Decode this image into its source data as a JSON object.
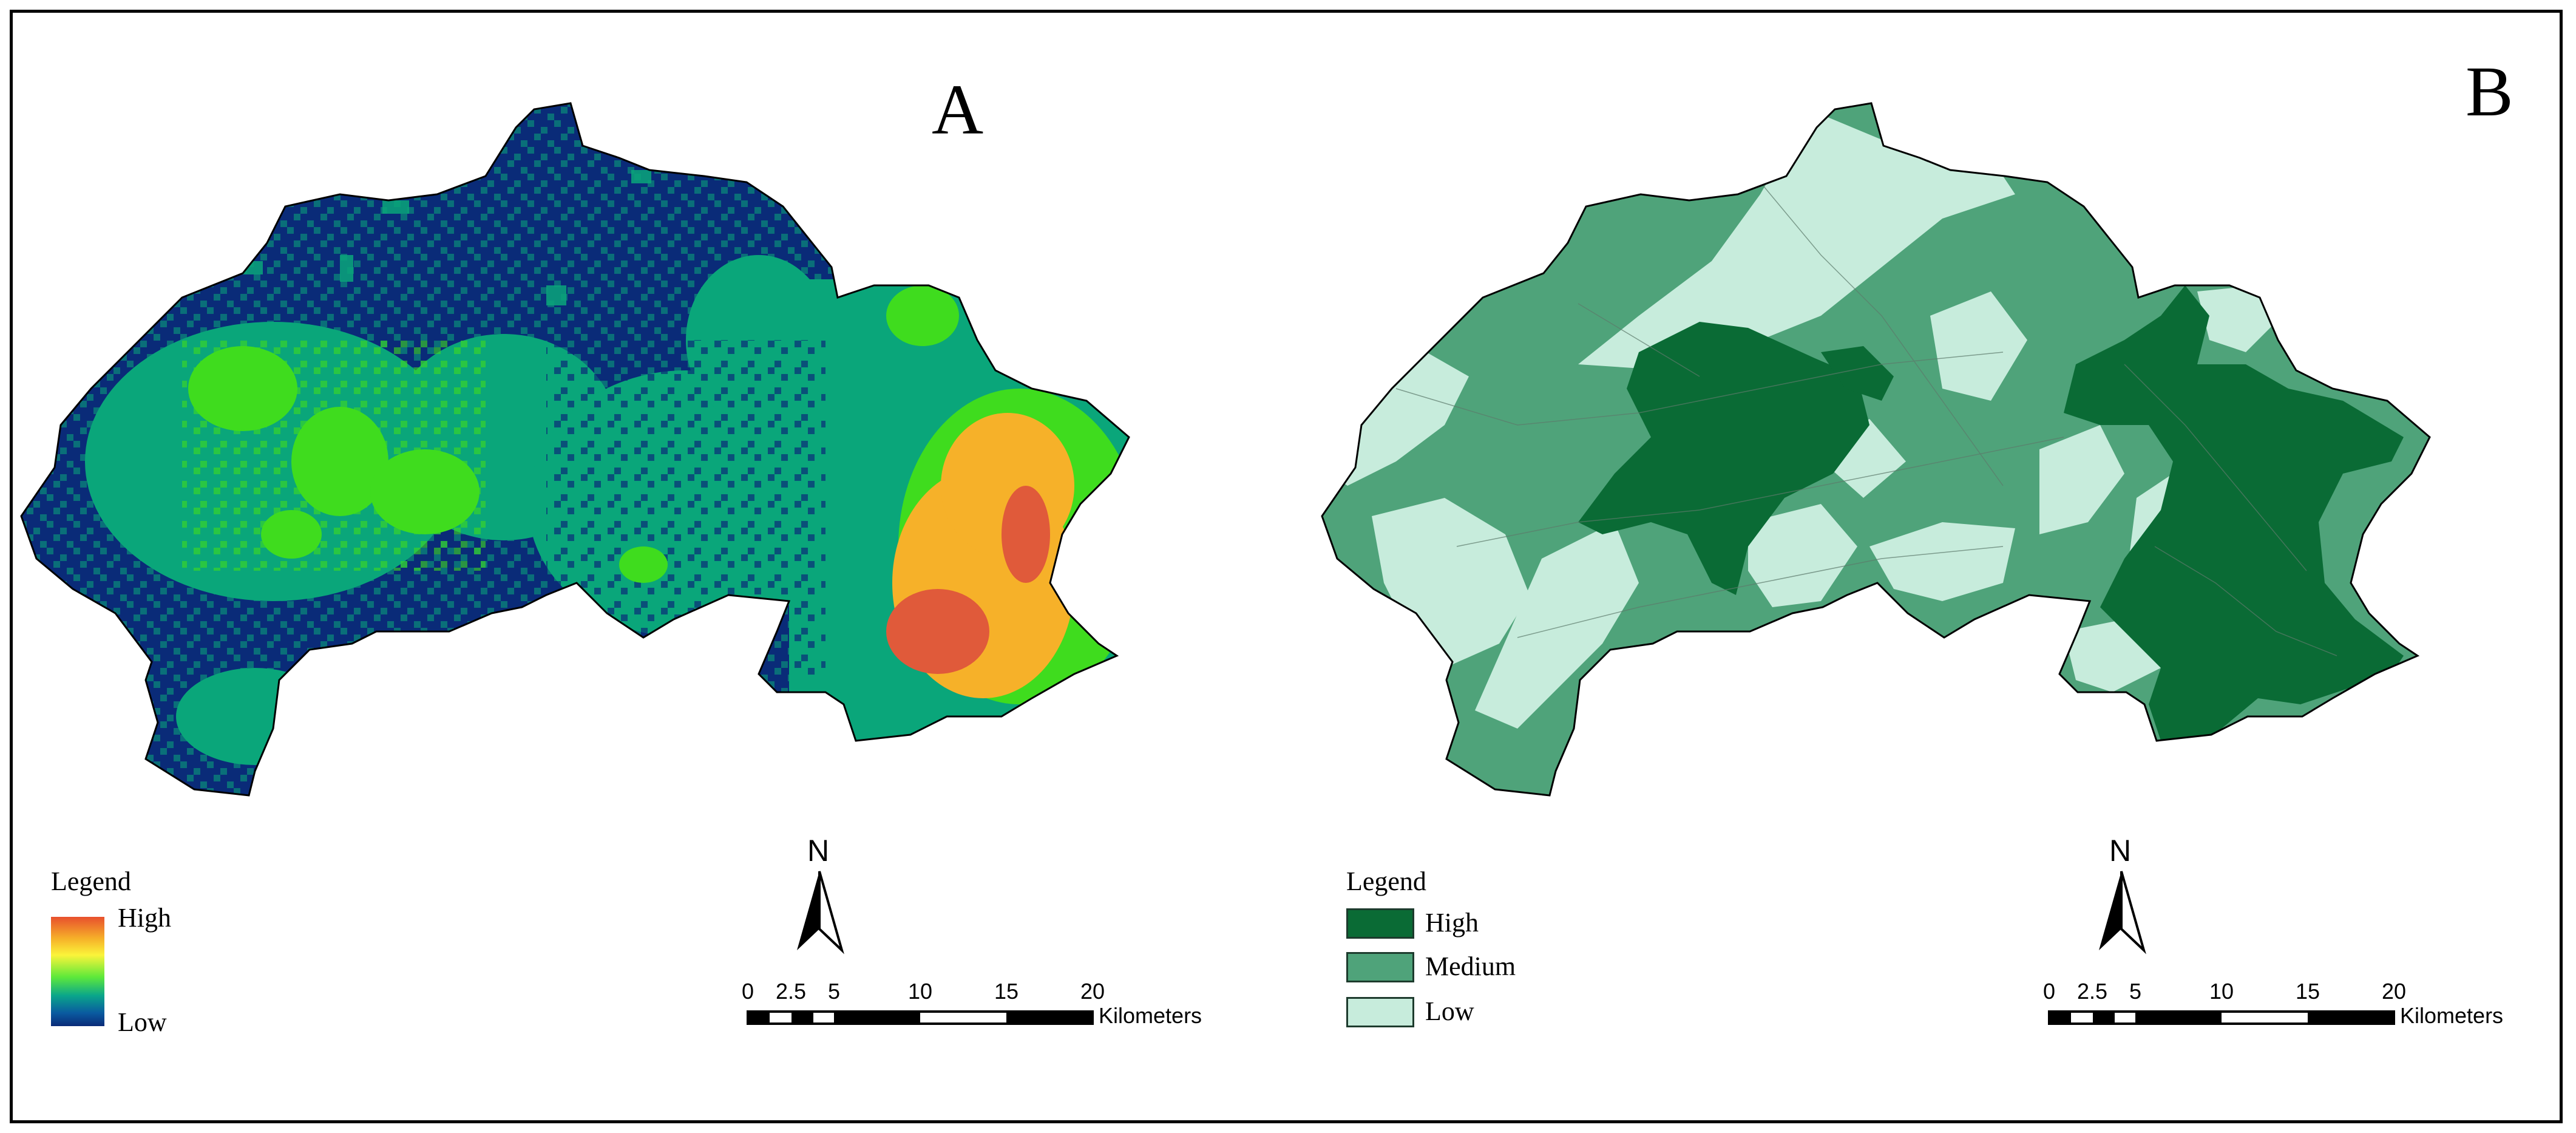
{
  "panels": [
    {
      "letter": "A",
      "legend": {
        "title": "Legend",
        "ramp_high": "High",
        "ramp_low": "Low",
        "ramp_colors": [
          "#e8502d",
          "#f6b129",
          "#fbf43a",
          "#5ee93a",
          "#0aa68a",
          "#0a5aa0",
          "#0a2b78"
        ]
      },
      "north_label": "N",
      "scale": {
        "ticks": [
          "0",
          "2.5",
          "5",
          "10",
          "15",
          "20"
        ],
        "unit": "Kilometers"
      },
      "colors": {
        "low": "#0a2b78",
        "mid": "#0aa67a",
        "green": "#3fdc1e",
        "yellow": "#f6b129",
        "high": "#e05a3a"
      }
    },
    {
      "letter": "B",
      "legend": {
        "title": "Legend",
        "classes": [
          {
            "label": "High",
            "color": "#0a6b35"
          },
          {
            "label": "Medium",
            "color": "#4fa37a"
          },
          {
            "label": "Low",
            "color": "#c7ecdc"
          }
        ]
      },
      "north_label": "N",
      "scale": {
        "ticks": [
          "0",
          "2.5",
          "5",
          "10",
          "15",
          "20"
        ],
        "unit": "Kilometers"
      }
    }
  ]
}
